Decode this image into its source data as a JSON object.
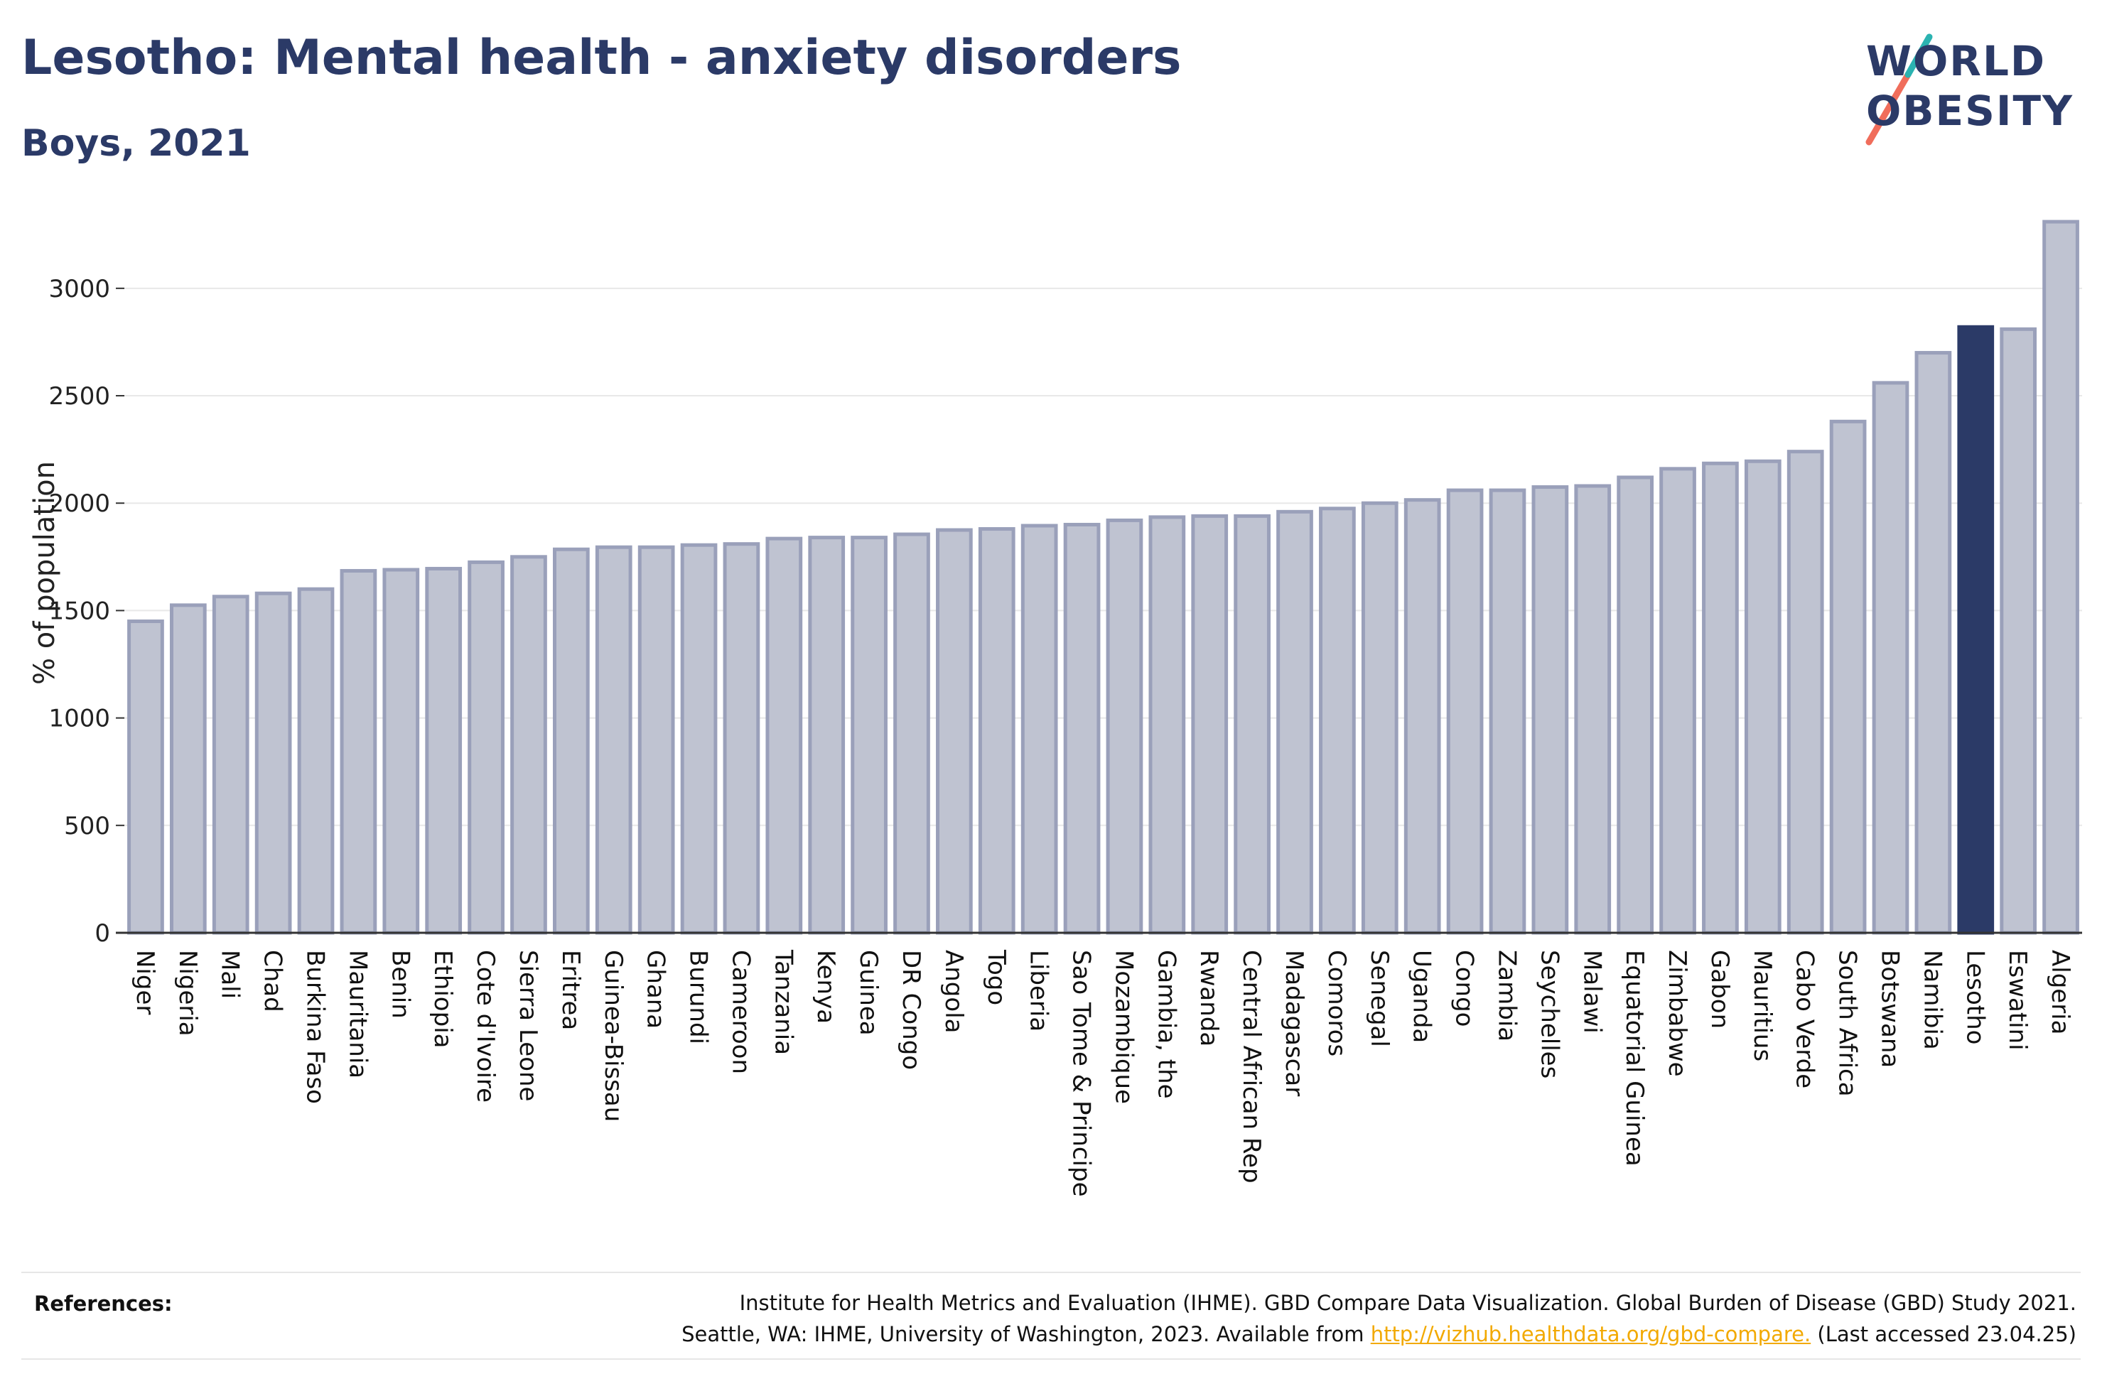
{
  "header": {
    "title": "Lesotho: Mental health - anxiety disorders",
    "subtitle": "Boys, 2021"
  },
  "logo": {
    "line1": "WORLD",
    "line2": "OBESITY"
  },
  "colors": {
    "bar_default": "#bfc3d1",
    "bar_default_stroke": "#9aa0ba",
    "bar_highlight": "#2b3a67",
    "gridline": "#e8e8e8",
    "axis": "#333333",
    "logo_teal": "#2bb3b1",
    "logo_coral": "#f06d5b",
    "link": "#f2a900"
  },
  "chart_data": {
    "type": "bar",
    "title": "Lesotho: Mental health - anxiety disorders",
    "subtitle": "Boys, 2021",
    "xlabel": "",
    "ylabel": "% of population",
    "ylim": [
      0,
      3350
    ],
    "yticks": [
      0,
      500,
      1000,
      1500,
      2000,
      2500,
      3000
    ],
    "grid": true,
    "highlight": "Lesotho",
    "categories": [
      "Niger",
      "Nigeria",
      "Mali",
      "Chad",
      "Burkina Faso",
      "Mauritania",
      "Benin",
      "Ethiopia",
      "Cote d'Ivoire",
      "Sierra Leone",
      "Eritrea",
      "Guinea-Bissau",
      "Ghana",
      "Burundi",
      "Cameroon",
      "Tanzania",
      "Kenya",
      "Guinea",
      "DR Congo",
      "Angola",
      "Togo",
      "Liberia",
      "Sao Tome & Principe",
      "Mozambique",
      "Gambia, the",
      "Rwanda",
      "Central African Rep",
      "Madagascar",
      "Comoros",
      "Senegal",
      "Uganda",
      "Congo",
      "Zambia",
      "Seychelles",
      "Malawi",
      "Equatorial Guinea",
      "Zimbabwe",
      "Gabon",
      "Mauritius",
      "Cabo Verde",
      "South Africa",
      "Botswana",
      "Namibia",
      "Lesotho",
      "Eswatini",
      "Algeria"
    ],
    "values": [
      1450,
      1525,
      1565,
      1580,
      1600,
      1685,
      1690,
      1695,
      1725,
      1750,
      1785,
      1795,
      1795,
      1805,
      1810,
      1835,
      1840,
      1840,
      1855,
      1875,
      1880,
      1895,
      1900,
      1920,
      1935,
      1940,
      1940,
      1960,
      1975,
      2000,
      2015,
      2060,
      2060,
      2075,
      2080,
      2120,
      2160,
      2185,
      2195,
      2240,
      2380,
      2560,
      2700,
      2820,
      2810,
      3310
    ]
  },
  "references": {
    "label": "References:",
    "line1": "Institute for Health Metrics and Evaluation (IHME). GBD Compare Data Visualization. Global Burden of Disease (GBD) Study 2021.",
    "line2_before": "Seattle, WA: IHME, University of Washington, 2023. Available from ",
    "link_text": "http://vizhub.healthdata.org/gbd-compare.",
    "line2_after": " (Last accessed 23.04.25)"
  }
}
